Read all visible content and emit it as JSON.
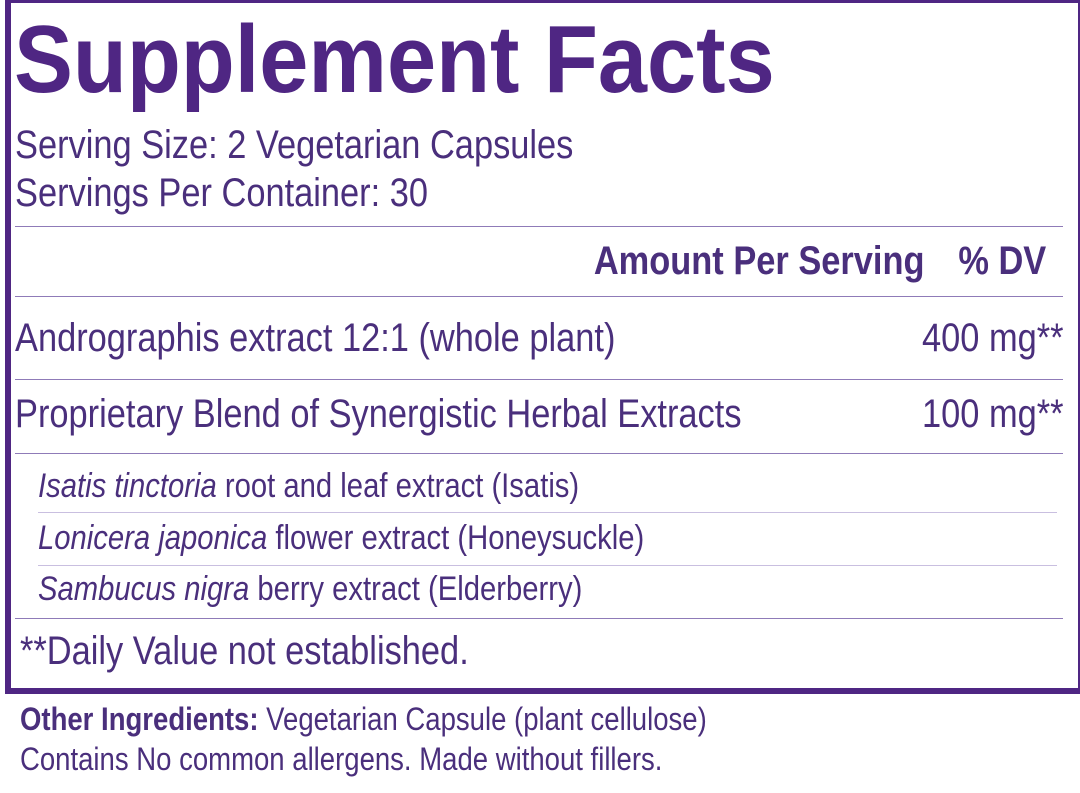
{
  "label": {
    "title": "Supplement Facts",
    "serving_size": "Serving Size: 2 Vegetarian Capsules",
    "servings_per_container": "Servings Per Container: 30",
    "header": {
      "amount": "Amount Per Serving",
      "dv": "% DV"
    },
    "ingredients": [
      {
        "name": "Andrographis extract 12:1 (whole plant)",
        "amount": "400 mg**"
      },
      {
        "name": "Proprietary Blend of Synergistic Herbal Extracts",
        "amount": "100 mg**"
      }
    ],
    "blend_components": [
      {
        "latin": "Isatis tinctoria",
        "description": "root and leaf extract (Isatis)"
      },
      {
        "latin": "Lonicera japonica",
        "description": "flower extract (Honeysuckle)"
      },
      {
        "latin": "Sambucus nigra",
        "description": "berry extract (Elderberry)"
      }
    ],
    "footnote": "**Daily Value not established."
  },
  "below": {
    "other_ingredients": {
      "label": "Other Ingredients:",
      "text": "Vegetarian Capsule (plant cellulose)"
    },
    "allergens": "Contains No common allergens. Made without fillers."
  }
}
